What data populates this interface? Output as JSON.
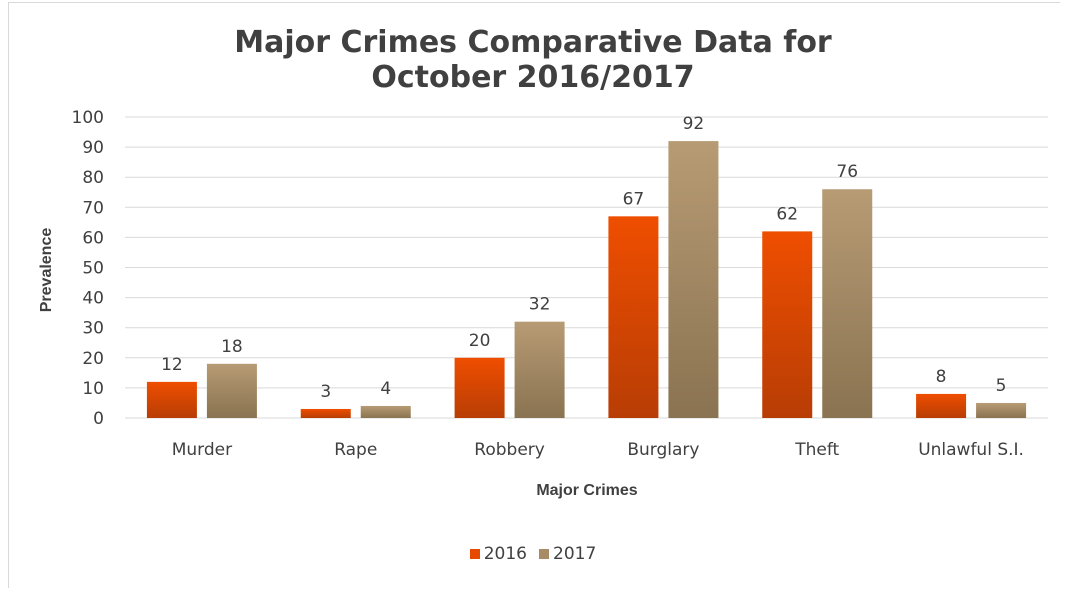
{
  "chart_data": {
    "type": "bar",
    "title_lines": [
      "Major Crimes Comparative Data for",
      "October 2016/2017"
    ],
    "xlabel": "Major Crimes",
    "ylabel": "Prevalence",
    "ylim": [
      0,
      100
    ],
    "yticks": [
      0,
      10,
      20,
      30,
      40,
      50,
      60,
      70,
      80,
      90,
      100
    ],
    "categories": [
      "Murder",
      "Rape",
      "Robbery",
      "Burglary",
      "Theft",
      "Unlawful S.I."
    ],
    "series": [
      {
        "name": "2016",
        "values": [
          12,
          3,
          20,
          67,
          62,
          8
        ],
        "color_top": "#ef4e00",
        "color_bottom": "#b83d05"
      },
      {
        "name": "2017",
        "values": [
          18,
          4,
          32,
          92,
          76,
          5
        ],
        "color_top": "#b79b74",
        "color_bottom": "#8a7351"
      }
    ],
    "grid": true,
    "legend_position": "bottom",
    "data_labels": true
  }
}
